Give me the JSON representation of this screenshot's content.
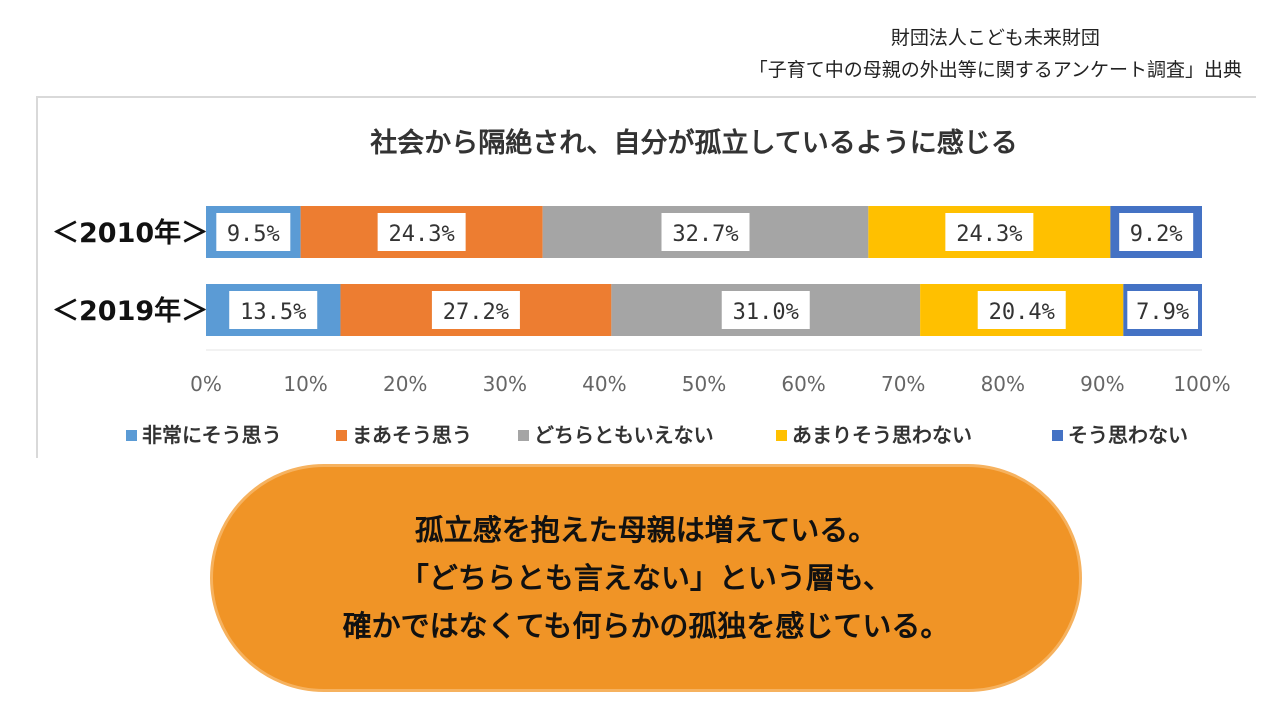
{
  "source": {
    "org": "財団法人こども未来財団",
    "survey": "「子育て中の母親の外出等に関するアンケート調査」出典"
  },
  "colors": {
    "blue_light": "#5b9bd5",
    "orange": "#ed7d31",
    "gray": "#a5a5a5",
    "yellow": "#ffc000",
    "blue_dark": "#4472c4",
    "callout_bg": "#f09426"
  },
  "chart_data": {
    "type": "bar",
    "orientation": "horizontal",
    "stacked": "100%",
    "title": "社会から隔絶され、自分が孤立しているように感じる",
    "categories": [
      "<2010年>",
      "<2019年>"
    ],
    "category_labels": [
      "＜2010年＞",
      "＜2019年＞"
    ],
    "series": [
      {
        "name": "非常にそう思う",
        "color": "#5b9bd5",
        "values": [
          9.5,
          13.5
        ],
        "labels": [
          "9.5%",
          "13.5%"
        ]
      },
      {
        "name": "まあそう思う",
        "color": "#ed7d31",
        "values": [
          24.3,
          27.2
        ],
        "labels": [
          "24.3%",
          "27.2%"
        ]
      },
      {
        "name": "どちらともいえない",
        "color": "#a5a5a5",
        "values": [
          32.7,
          31.0
        ],
        "labels": [
          "32.7%",
          "31.0%"
        ]
      },
      {
        "name": "あまりそう思わない",
        "color": "#ffc000",
        "values": [
          24.3,
          20.4
        ],
        "labels": [
          "24.3%",
          "20.4%"
        ]
      },
      {
        "name": "そう思わない",
        "color": "#4472c4",
        "values": [
          9.2,
          7.9
        ],
        "labels": [
          "9.2%",
          "7.9%"
        ]
      }
    ],
    "x_ticks": [
      "0%",
      "10%",
      "20%",
      "30%",
      "40%",
      "50%",
      "60%",
      "70%",
      "80%",
      "90%",
      "100%"
    ],
    "xlim": [
      0,
      100
    ],
    "grid": false,
    "legend_position": "bottom"
  },
  "callout": {
    "lines": [
      "孤立感を抱えた母親は増えている。",
      "「どちらとも言えない」という層も、",
      "確かではなくても何らかの孤独を感じている。"
    ]
  }
}
